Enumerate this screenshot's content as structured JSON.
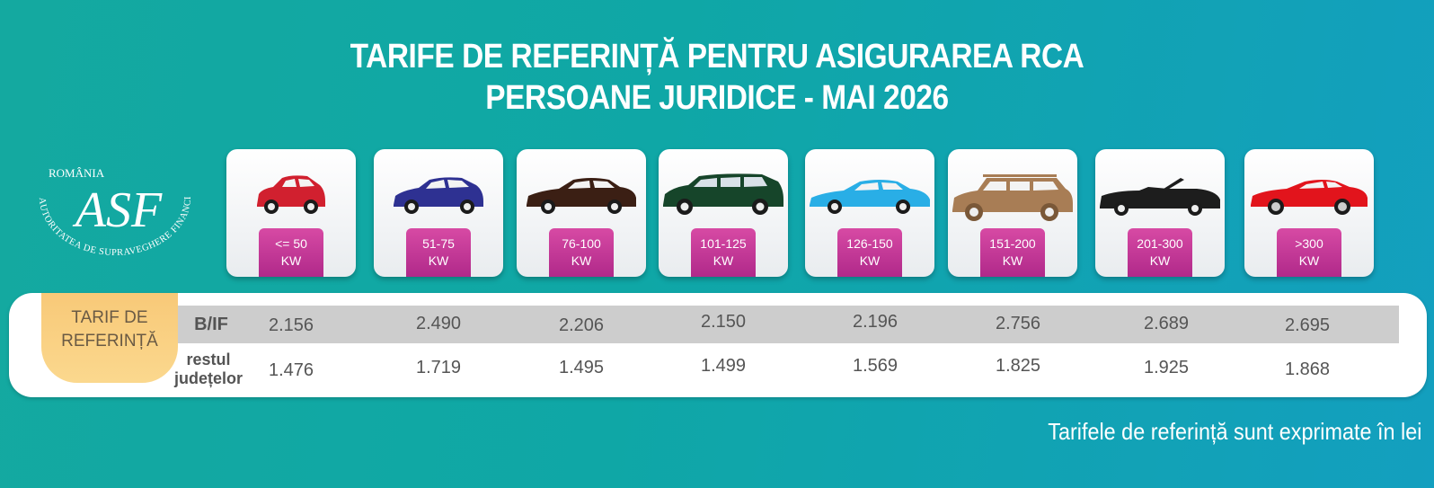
{
  "header": {
    "line1": "TARIFE DE REFERINȚĂ PENTRU ASIGURAREA RCA",
    "line2": "PERSOANE JURIDICE -  MAI 2026"
  },
  "logo": {
    "country": "ROMÂNIA",
    "authority": "AUTORITATEA DE SUPRAVEGHERE FINANCIARĂ",
    "monogram": "ASF"
  },
  "categories": [
    {
      "range": "<= 50",
      "unit": "KW",
      "car_icon": "red-hatchback-icon",
      "color": "#d1202f"
    },
    {
      "range": "51-75",
      "unit": "KW",
      "car_icon": "blue-hatchback-icon",
      "color": "#2e3192"
    },
    {
      "range": "76-100",
      "unit": "KW",
      "car_icon": "brown-sedan-icon",
      "color": "#3b1f14"
    },
    {
      "range": "101-125",
      "unit": "KW",
      "car_icon": "green-minivan-icon",
      "color": "#16452a"
    },
    {
      "range": "126-150",
      "unit": "KW",
      "car_icon": "lightblue-sedan-icon",
      "color": "#29aee6"
    },
    {
      "range": "151-200",
      "unit": "KW",
      "car_icon": "tan-suv-icon",
      "color": "#a87d55"
    },
    {
      "range": "201-300",
      "unit": "KW",
      "car_icon": "black-convertible-icon",
      "color": "#1d1d1d"
    },
    {
      "range": ">300",
      "unit": "KW",
      "car_icon": "red-sportscar-icon",
      "color": "#e2141c"
    }
  ],
  "table": {
    "tab_label": "TARIF DE REFERINȚĂ",
    "row1_label": "B/IF",
    "row2_label_line1": "restul",
    "row2_label_line2": "județelor",
    "bif_values": [
      "2.156",
      "2.490",
      "2.206",
      "2.150",
      "2.196",
      "2.756",
      "2.689",
      "2.695"
    ],
    "rest_values": [
      "1.476",
      "1.719",
      "1.495",
      "1.499",
      "1.569",
      "1.825",
      "1.925",
      "1.868"
    ]
  },
  "footnote": "Tarifele de referință sunt exprimate în lei",
  "colors": {
    "badge": "#c0399a",
    "tab": "#fbd38a",
    "row_highlight": "#cdcdcd",
    "background": "#13a7aa"
  }
}
